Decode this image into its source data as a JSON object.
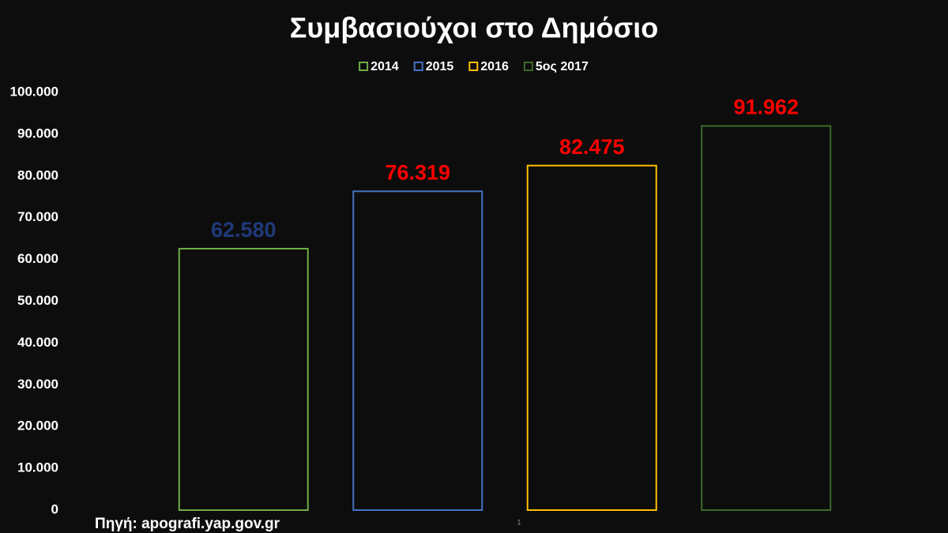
{
  "chart_data": {
    "type": "bar",
    "title": "Συμβασιούχοι στο Δημόσιο",
    "categories": [
      "1"
    ],
    "series": [
      {
        "name": "2014",
        "color": "#70ad47",
        "values": [
          62580
        ],
        "value_labels": [
          "62.580"
        ],
        "label_color": "#1f3a7a"
      },
      {
        "name": "2015",
        "color": "#4472c4",
        "values": [
          76319
        ],
        "value_labels": [
          "76.319"
        ],
        "label_color": "#ff0000"
      },
      {
        "name": "2016",
        "color": "#ffc000",
        "values": [
          82475
        ],
        "value_labels": [
          "82.475"
        ],
        "label_color": "#ff0000"
      },
      {
        "name": "5ος 2017",
        "color": "#3d6b2a",
        "values": [
          91962
        ],
        "value_labels": [
          "91.962"
        ],
        "label_color": "#ff0000"
      }
    ],
    "ylim": [
      0,
      100000
    ],
    "yticks": [
      0,
      {
        "value": 10000,
        "label": "10.000"
      },
      {
        "value": 20000,
        "label": "20.000"
      },
      {
        "value": 30000,
        "label": "30.000"
      },
      {
        "value": 40000,
        "label": "40.000"
      },
      {
        "value": 50000,
        "label": "50.000"
      },
      {
        "value": 60000,
        "label": "60.000"
      },
      {
        "value": 70000,
        "label": "70.000"
      },
      {
        "value": 80000,
        "label": "80.000"
      },
      {
        "value": 90000,
        "label": "90.000"
      },
      {
        "value": 100000,
        "label": "100.000"
      }
    ],
    "source": "Πηγή: apografi.yap.gov.gr"
  }
}
